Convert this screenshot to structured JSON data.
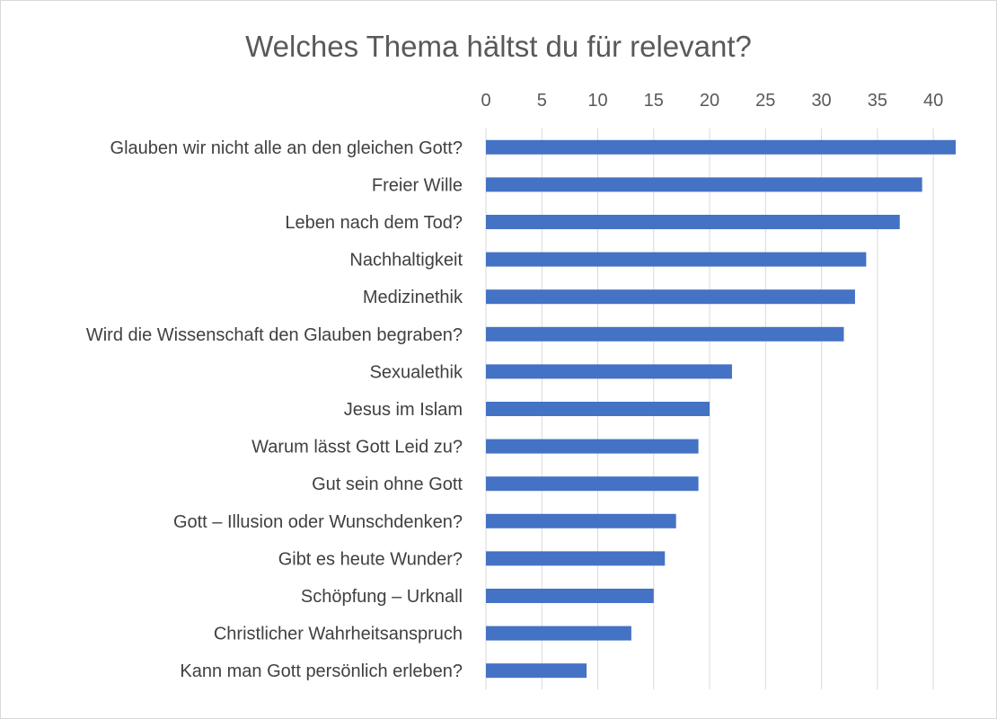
{
  "chart_data": {
    "type": "bar",
    "orientation": "horizontal",
    "title": "Welches Thema hältst du für relevant?",
    "categories": [
      "Glauben wir nicht alle an den gleichen Gott?",
      "Freier Wille",
      "Leben nach dem Tod?",
      "Nachhaltigkeit",
      "Medizinethik",
      "Wird die Wissenschaft den Glauben begraben?",
      "Sexualethik",
      "Jesus im Islam",
      "Warum lässt Gott Leid zu?",
      "Gut sein ohne Gott",
      "Gott – Illusion oder Wunschdenken?",
      "Gibt es heute Wunder?",
      "Schöpfung – Urknall",
      "Christlicher Wahrheitsanspruch",
      "Kann man Gott persönlich erleben?"
    ],
    "values": [
      42,
      39,
      37,
      34,
      33,
      32,
      22,
      20,
      19,
      19,
      17,
      16,
      15,
      13,
      9
    ],
    "xlim": [
      0,
      42
    ],
    "xticks": [
      0,
      5,
      10,
      15,
      20,
      25,
      30,
      35,
      40
    ],
    "axis_position": "top",
    "grid": true,
    "legend": "none",
    "bar_color": "#4472c4"
  }
}
